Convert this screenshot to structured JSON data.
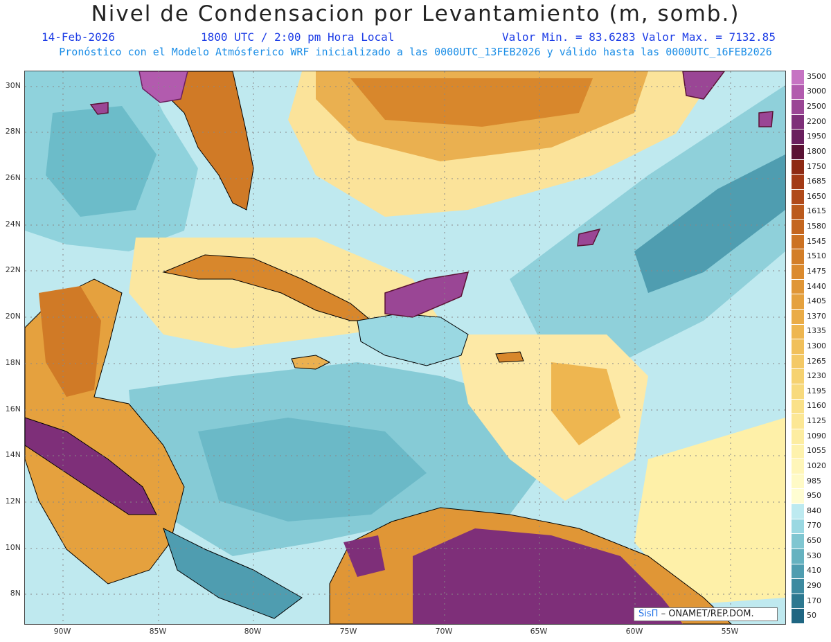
{
  "header": {
    "title": "Nivel de Condensacion por Levantamiento (m, somb.)",
    "date": "14-Feb-2026",
    "time": "1800 UTC / 2:00 pm Hora Local",
    "minmax": "Valor Min. = 83.6283   Valor Max. = 7132.85",
    "model_line": "Pronóstico con el Modelo Atmósferico WRF inicializado a las 0000UTC_13FEB2026 y válido hasta las  0000UTC_16FEB2026"
  },
  "axes": {
    "lat_labels": [
      "30N",
      "28N",
      "26N",
      "24N",
      "22N",
      "20N",
      "18N",
      "16N",
      "14N",
      "12N",
      "10N",
      "8N"
    ],
    "lon_labels": [
      "90W",
      "85W",
      "80W",
      "75W",
      "70W",
      "65W",
      "60W",
      "55W"
    ]
  },
  "legend": {
    "levels": [
      "3500",
      "3000",
      "2500",
      "2200",
      "1950",
      "1800",
      "1750",
      "1685",
      "1650",
      "1615",
      "1580",
      "1545",
      "1510",
      "1475",
      "1440",
      "1405",
      "1370",
      "1335",
      "1300",
      "1265",
      "1230",
      "1195",
      "1160",
      "1125",
      "1090",
      "1055",
      "1020",
      "985",
      "950",
      "840",
      "770",
      "650",
      "530",
      "410",
      "290",
      "170",
      "50"
    ],
    "colors": [
      "#c673c3",
      "#b25bae",
      "#9a4695",
      "#7e2f79",
      "#6a1f5e",
      "#5a1234",
      "#8e2a14",
      "#a33a16",
      "#b04a1a",
      "#bb5a1c",
      "#c4661f",
      "#cc7223",
      "#d37e28",
      "#db8a2e",
      "#e09636",
      "#e5a13e",
      "#eaac47",
      "#eeb650",
      "#f1c05b",
      "#f4c966",
      "#f6d271",
      "#f8da7d",
      "#fae189",
      "#fce795",
      "#fdeda1",
      "#fef2ad",
      "#fff6b9",
      "#fffac6",
      "#fffdd2",
      "#bdeaf0",
      "#9ad8e2",
      "#7fc6d1",
      "#66b2c0",
      "#4f9db0",
      "#3d8aa0",
      "#2d7890",
      "#1f6682"
    ]
  },
  "credit": {
    "brand": "SisΠ",
    "org": "– ONAMET/REP.DOM."
  }
}
